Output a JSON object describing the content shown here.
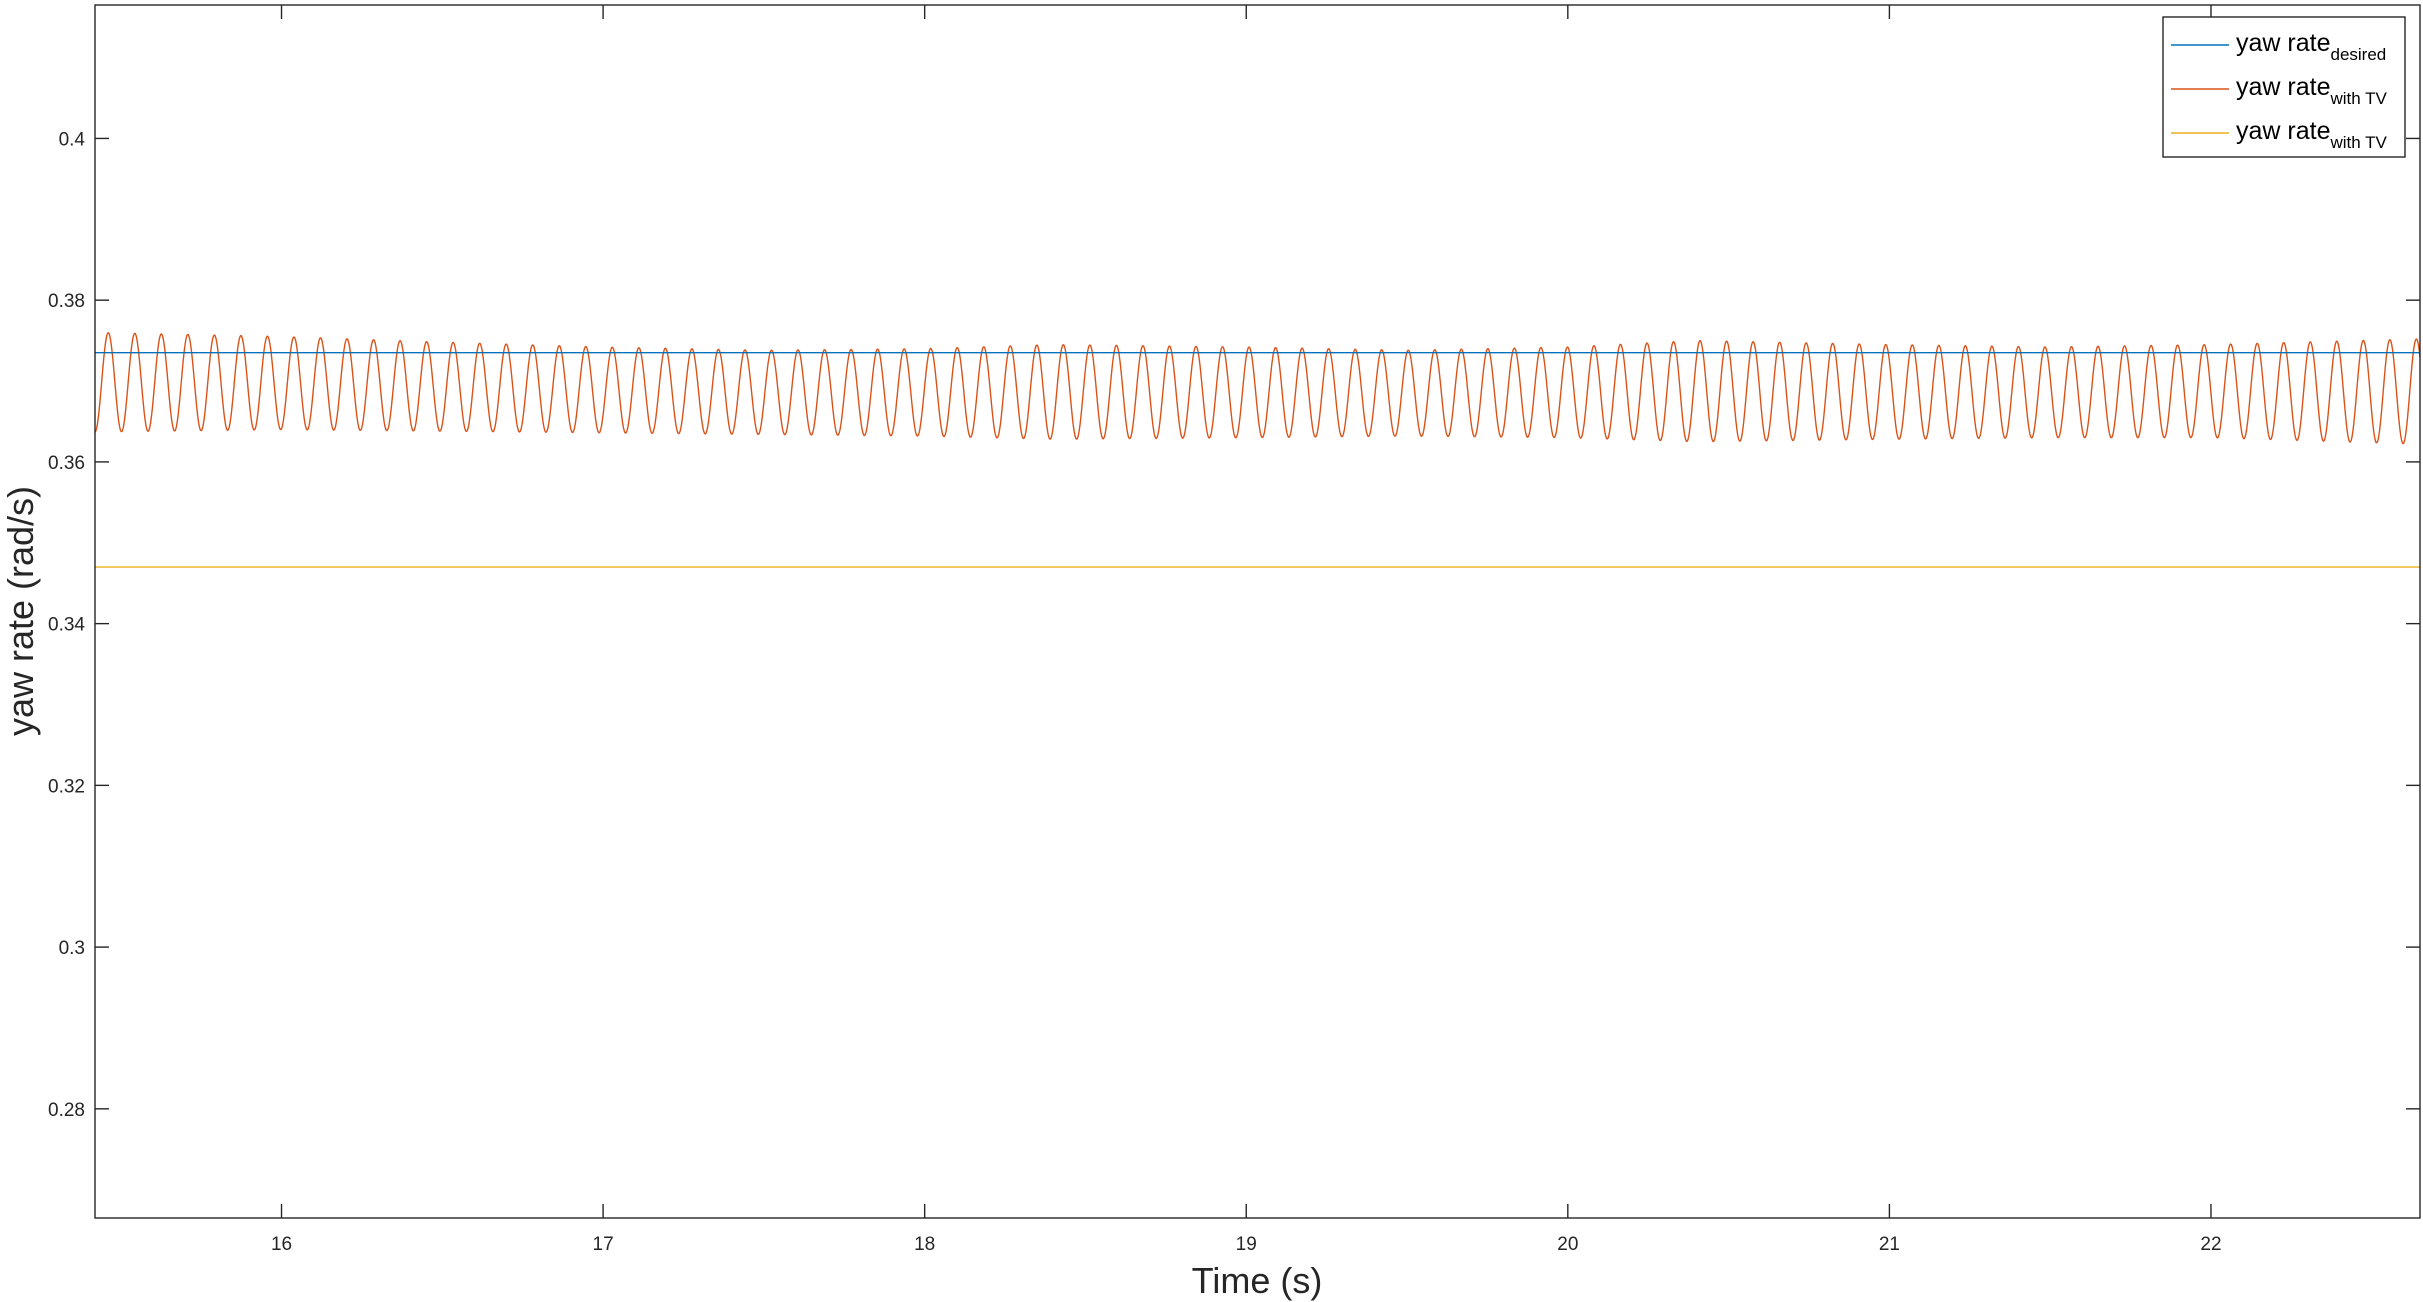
{
  "chart_data": {
    "type": "line",
    "title": "",
    "xlabel": "Time (s)",
    "ylabel": "yaw rate (rad/s)",
    "xlim": [
      15.42,
      22.65
    ],
    "ylim": [
      0.2665,
      0.4165
    ],
    "xticks": [
      16,
      17,
      18,
      19,
      20,
      21,
      22
    ],
    "yticks": [
      0.28,
      0.3,
      0.32,
      0.34,
      0.36,
      0.38,
      0.4
    ],
    "xtick_labels": [
      "16",
      "17",
      "18",
      "19",
      "20",
      "21",
      "22"
    ],
    "ytick_labels": [
      "0.28",
      "0.3",
      "0.32",
      "0.34",
      "0.36",
      "0.38",
      "0.4"
    ],
    "grid": false,
    "legend_position": "top-right",
    "series": [
      {
        "name": "yaw rate",
        "subscript": "desired",
        "color": "#0072BD",
        "kind": "constant",
        "value": 0.3735
      },
      {
        "name": "yaw rate",
        "subscript": "with TV",
        "color": "#D95319",
        "kind": "oscillation",
        "period": 0.0825,
        "x_start": 15.42,
        "x_end": 22.65,
        "envelope": [
          {
            "x": 15.42,
            "min": 0.3637,
            "max": 0.376
          },
          {
            "x": 16.0,
            "min": 0.364,
            "max": 0.3755
          },
          {
            "x": 16.5,
            "min": 0.3638,
            "max": 0.3748
          },
          {
            "x": 17.0,
            "min": 0.3636,
            "max": 0.3742
          },
          {
            "x": 17.5,
            "min": 0.3634,
            "max": 0.3738
          },
          {
            "x": 18.0,
            "min": 0.3632,
            "max": 0.374
          },
          {
            "x": 18.4,
            "min": 0.3628,
            "max": 0.3745
          },
          {
            "x": 19.0,
            "min": 0.363,
            "max": 0.3742
          },
          {
            "x": 19.5,
            "min": 0.3632,
            "max": 0.3738
          },
          {
            "x": 20.0,
            "min": 0.363,
            "max": 0.3742
          },
          {
            "x": 20.4,
            "min": 0.3625,
            "max": 0.375
          },
          {
            "x": 21.0,
            "min": 0.3628,
            "max": 0.3745
          },
          {
            "x": 21.5,
            "min": 0.363,
            "max": 0.3742
          },
          {
            "x": 22.0,
            "min": 0.363,
            "max": 0.3745
          },
          {
            "x": 22.65,
            "min": 0.3622,
            "max": 0.3752
          }
        ]
      },
      {
        "name": "yaw rate",
        "subscript": "with TV",
        "color": "#EDB120",
        "kind": "constant",
        "value": 0.347
      }
    ]
  }
}
